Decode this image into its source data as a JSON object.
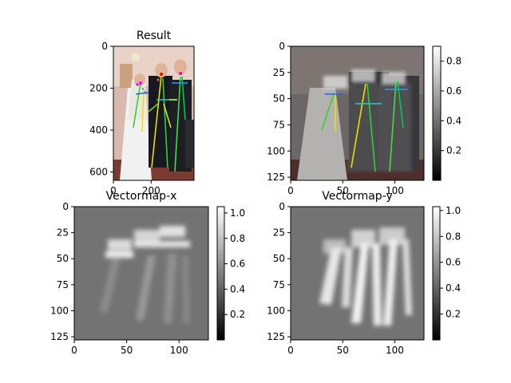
{
  "figure": {
    "panel_count": 4
  },
  "chart_data": [
    {
      "type": "heatmap",
      "panel": "top-left",
      "title": "Result",
      "content": "RGB photo of a wedding group with a colored pose skeleton overlay",
      "x_ticks": [
        "0",
        "200"
      ],
      "y_ticks": [
        "0",
        "200",
        "400",
        "600"
      ],
      "xlim": [
        0,
        427
      ],
      "ylim": [
        640,
        0
      ],
      "colorbar": false
    },
    {
      "type": "heatmap",
      "panel": "top-right",
      "title": "",
      "content": "Grayscale heatmap blended over the photo with skeleton overlay",
      "x_ticks": [
        "0",
        "50",
        "100"
      ],
      "y_ticks": [
        "0",
        "25",
        "50",
        "75",
        "100",
        "125"
      ],
      "xlim": [
        0,
        128
      ],
      "ylim": [
        128,
        0
      ],
      "colorbar": true,
      "colorbar_ticks": [
        "0.2",
        "0.4",
        "0.6",
        "0.8"
      ],
      "colorbar_range": [
        0.0,
        0.9
      ]
    },
    {
      "type": "heatmap",
      "panel": "bottom-left",
      "title": "Vectormap-x",
      "x_ticks": [
        "0",
        "50",
        "100"
      ],
      "y_ticks": [
        "0",
        "25",
        "50",
        "75",
        "100",
        "125"
      ],
      "xlim": [
        0,
        128
      ],
      "ylim": [
        128,
        0
      ],
      "colorbar": true,
      "colorbar_ticks": [
        "0.2",
        "0.4",
        "0.6",
        "0.8",
        "1.0"
      ],
      "colorbar_range": [
        0.0,
        1.05
      ]
    },
    {
      "type": "heatmap",
      "panel": "bottom-right",
      "title": "Vectormap-y",
      "x_ticks": [
        "0",
        "50",
        "100"
      ],
      "y_ticks": [
        "0",
        "25",
        "50",
        "75",
        "100",
        "125"
      ],
      "xlim": [
        0,
        128
      ],
      "ylim": [
        128,
        0
      ],
      "colorbar": true,
      "colorbar_ticks": [
        "0.2",
        "0.4",
        "0.6",
        "0.8",
        "1.0"
      ],
      "colorbar_range": [
        0.0,
        1.03
      ]
    }
  ]
}
